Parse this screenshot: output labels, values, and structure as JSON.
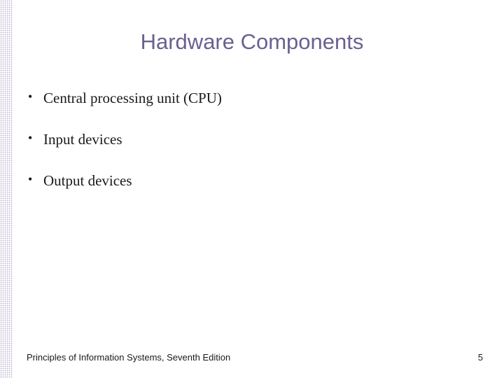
{
  "slide": {
    "title": "Hardware Components",
    "title_color": "#6b6091",
    "title_fontsize": 31,
    "bullets": [
      "Central processing unit (CPU)",
      "Input devices",
      "Output devices"
    ],
    "bullet_fontsize": 21,
    "bullet_color": "#1a1a1a",
    "bullet_spacing": 34,
    "footer": "Principles of Information Systems, Seventh Edition",
    "page_number": "5",
    "footer_fontsize": 13,
    "background_color": "#ffffff",
    "border_dot_color": "#c8c2d8",
    "border_width": 18
  }
}
